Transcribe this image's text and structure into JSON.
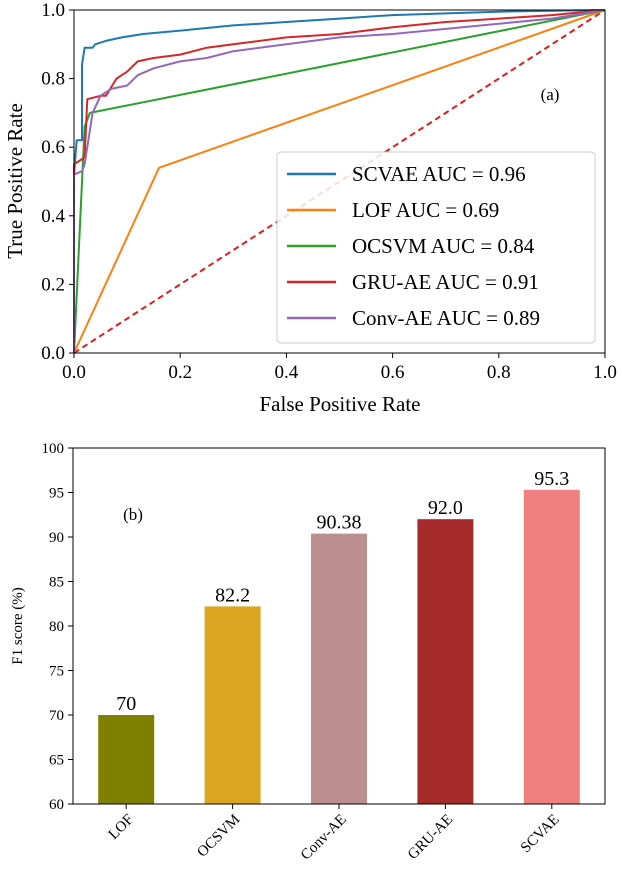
{
  "chart_data": [
    {
      "type": "line",
      "title": "",
      "panel_label": "(a)",
      "xlabel": "False Positive Rate",
      "ylabel": "True Positive Rate",
      "xlim": [
        0.0,
        1.0
      ],
      "ylim": [
        0.0,
        1.0
      ],
      "xticks": [
        "0.0",
        "0.2",
        "0.4",
        "0.6",
        "0.8",
        "1.0"
      ],
      "yticks": [
        "0.0",
        "0.2",
        "0.4",
        "0.6",
        "0.8",
        "1.0"
      ],
      "legend_position": "lower-right",
      "series": [
        {
          "name": "SCVAE",
          "label": "SCVAE AUC = 0.96",
          "auc": 0.96,
          "color": "#1f77b4",
          "points": [
            [
              0,
              0
            ],
            [
              0,
              0.52
            ],
            [
              0.005,
              0.62
            ],
            [
              0.015,
              0.62
            ],
            [
              0.015,
              0.84
            ],
            [
              0.02,
              0.89
            ],
            [
              0.035,
              0.89
            ],
            [
              0.04,
              0.9
            ],
            [
              0.06,
              0.91
            ],
            [
              0.09,
              0.92
            ],
            [
              0.13,
              0.93
            ],
            [
              0.2,
              0.94
            ],
            [
              0.3,
              0.955
            ],
            [
              0.4,
              0.965
            ],
            [
              0.5,
              0.975
            ],
            [
              0.6,
              0.985
            ],
            [
              0.7,
              0.99
            ],
            [
              0.8,
              0.995
            ],
            [
              0.9,
              0.998
            ],
            [
              1.0,
              1.0
            ]
          ]
        },
        {
          "name": "LOF",
          "label": "LOF AUC = 0.69",
          "auc": 0.69,
          "color": "#ff7f0e",
          "points": [
            [
              0,
              0
            ],
            [
              0.16,
              0.54
            ],
            [
              1.0,
              1.0
            ]
          ]
        },
        {
          "name": "OCSVM",
          "label": "OCSVM AUC = 0.84",
          "auc": 0.84,
          "color": "#2ca02c",
          "points": [
            [
              0,
              0
            ],
            [
              0.02,
              0.66
            ],
            [
              0.03,
              0.7
            ],
            [
              1.0,
              1.0
            ]
          ]
        },
        {
          "name": "GRU-AE",
          "label": "GRU-AE AUC = 0.91",
          "auc": 0.91,
          "color": "#d62728",
          "points": [
            [
              0,
              0
            ],
            [
              0,
              0.55
            ],
            [
              0.01,
              0.56
            ],
            [
              0.02,
              0.57
            ],
            [
              0.025,
              0.74
            ],
            [
              0.05,
              0.75
            ],
            [
              0.06,
              0.75
            ],
            [
              0.08,
              0.8
            ],
            [
              0.1,
              0.82
            ],
            [
              0.12,
              0.85
            ],
            [
              0.15,
              0.86
            ],
            [
              0.2,
              0.87
            ],
            [
              0.25,
              0.89
            ],
            [
              0.3,
              0.9
            ],
            [
              0.4,
              0.92
            ],
            [
              0.5,
              0.93
            ],
            [
              0.6,
              0.95
            ],
            [
              0.7,
              0.965
            ],
            [
              0.8,
              0.975
            ],
            [
              0.9,
              0.985
            ],
            [
              1.0,
              1.0
            ]
          ]
        },
        {
          "name": "Conv-AE",
          "label": "Conv-AE AUC = 0.89",
          "auc": 0.89,
          "color": "#9467bd",
          "points": [
            [
              0,
              0
            ],
            [
              0,
              0.52
            ],
            [
              0.015,
              0.53
            ],
            [
              0.02,
              0.55
            ],
            [
              0.035,
              0.7
            ],
            [
              0.05,
              0.75
            ],
            [
              0.07,
              0.77
            ],
            [
              0.1,
              0.78
            ],
            [
              0.12,
              0.81
            ],
            [
              0.15,
              0.83
            ],
            [
              0.2,
              0.85
            ],
            [
              0.25,
              0.86
            ],
            [
              0.3,
              0.88
            ],
            [
              0.4,
              0.9
            ],
            [
              0.5,
              0.92
            ],
            [
              0.6,
              0.93
            ],
            [
              0.7,
              0.945
            ],
            [
              0.8,
              0.96
            ],
            [
              0.9,
              0.975
            ],
            [
              1.0,
              1.0
            ]
          ]
        }
      ],
      "reference_line": {
        "style": "dashed",
        "color": "#e41a1c",
        "from": [
          0,
          0
        ],
        "to": [
          1,
          1
        ]
      }
    },
    {
      "type": "bar",
      "title": "",
      "panel_label": "(b)",
      "xlabel": "",
      "ylabel": "F1 score (%)",
      "ylim": [
        60,
        100
      ],
      "yticks": [
        "60",
        "65",
        "70",
        "75",
        "80",
        "85",
        "90",
        "95",
        "100"
      ],
      "categories": [
        "LOF",
        "OCSVM",
        "Conv-AE",
        "GRU-AE",
        "SCVAE"
      ],
      "values": [
        70,
        82.2,
        90.38,
        92.0,
        95.3
      ],
      "value_labels": [
        "70",
        "82.2",
        "90.38",
        "92.0",
        "95.3"
      ],
      "colors": [
        "#808000",
        "#daa520",
        "#bc8f8f",
        "#a52a2a",
        "#f08080"
      ]
    }
  ]
}
